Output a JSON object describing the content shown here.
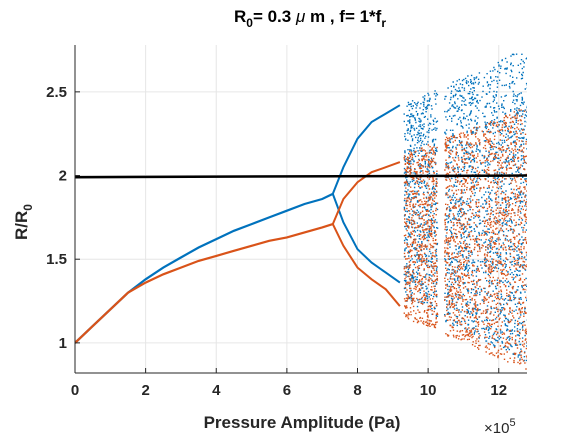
{
  "chart_data": {
    "type": "scatter",
    "title": {
      "r_main": "R",
      "r_sub": "0",
      "mid": "= 0.3 ",
      "mu": "μ",
      "post": " m , f= 1*f",
      "f_sub": "r"
    },
    "xlabel": "Pressure Amplitude (Pa)",
    "ylabel": {
      "main": "R/R",
      "sub": "0"
    },
    "x_multiplier": {
      "base": "×10",
      "exp": "5"
    },
    "xlim": [
      0,
      12.8
    ],
    "ylim": [
      0.82,
      2.78
    ],
    "x_ticks": [
      0,
      2,
      4,
      6,
      8,
      10,
      12
    ],
    "x_tick_labels": [
      "0",
      "2",
      "4",
      "6",
      "8",
      "10",
      "12"
    ],
    "y_ticks": [
      1,
      1.5,
      2,
      2.5
    ],
    "y_tick_labels": [
      "1",
      "1.5",
      "2",
      "2.5"
    ],
    "grid": true,
    "reference_line": {
      "y": [
        1.99,
        2.0
      ],
      "x": [
        0,
        12.8
      ],
      "color": "#000000"
    },
    "series": [
      {
        "color": "#0072BD",
        "x": [
          0,
          0.5,
          1.0,
          1.5,
          2.0,
          2.5,
          3.0,
          3.5,
          4.0,
          4.5,
          5.0,
          5.5,
          6.0,
          6.5,
          7.0,
          7.3
        ],
        "y": [
          1.0,
          1.1,
          1.2,
          1.3,
          1.38,
          1.45,
          1.51,
          1.57,
          1.62,
          1.67,
          1.71,
          1.75,
          1.79,
          1.83,
          1.86,
          1.89
        ],
        "branches_upper": {
          "x": [
            7.3,
            7.6,
            8.0,
            8.4,
            8.8,
            9.2
          ],
          "y": [
            1.89,
            2.05,
            2.22,
            2.32,
            2.37,
            2.42
          ]
        },
        "branches_lower": {
          "x": [
            7.3,
            7.6,
            8.0,
            8.4,
            8.8,
            9.2
          ],
          "y": [
            1.89,
            1.72,
            1.56,
            1.48,
            1.42,
            1.36
          ]
        },
        "chaos_y_range": [
          0.88,
          2.77
        ]
      },
      {
        "color": "#D95319",
        "x": [
          0,
          0.5,
          1.0,
          1.5,
          2.0,
          2.5,
          3.0,
          3.5,
          4.0,
          4.5,
          5.0,
          5.5,
          6.0,
          6.5,
          7.0,
          7.3
        ],
        "y": [
          1.0,
          1.1,
          1.2,
          1.3,
          1.36,
          1.41,
          1.45,
          1.49,
          1.52,
          1.55,
          1.58,
          1.61,
          1.63,
          1.66,
          1.69,
          1.71
        ],
        "branches_upper": {
          "x": [
            7.3,
            7.6,
            8.0,
            8.4,
            8.8,
            9.2
          ],
          "y": [
            1.71,
            1.86,
            1.96,
            2.02,
            2.05,
            2.08
          ]
        },
        "branches_lower": {
          "x": [
            7.3,
            7.6,
            8.0,
            8.4,
            8.8,
            9.2
          ],
          "y": [
            1.71,
            1.58,
            1.45,
            1.38,
            1.32,
            1.22
          ]
        },
        "chaos_y_range": [
          0.84,
          2.42
        ]
      }
    ]
  }
}
